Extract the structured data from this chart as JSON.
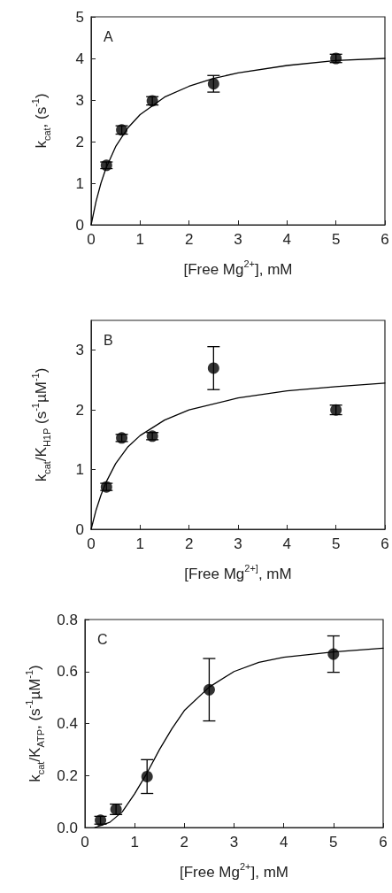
{
  "chart_data": [
    {
      "type": "scatter",
      "xlabel": "[Free Mg$^{2+}$], mM",
      "ylabel": "k$_{cat}$, (s$^{-1}$)",
      "annotations": [
        "A"
      ],
      "xlim": [
        0,
        6
      ],
      "xticks": [
        0,
        1,
        2,
        3,
        4,
        5,
        6
      ],
      "ylim": [
        0,
        5
      ],
      "yticks": [
        0,
        1,
        2,
        3,
        4,
        5
      ],
      "grid": false,
      "marker": "circle",
      "series": [
        {
          "color": "#000000",
          "x": [
            0.3125,
            0.625,
            1.25,
            2.5,
            5
          ],
          "values": [
            1.43,
            2.28,
            2.98,
            3.39,
            4.0
          ],
          "errors": [
            0.08,
            0.1,
            0.1,
            0.2,
            0.1
          ]
        },
        {
          "type": "line",
          "color": "#000000",
          "marker": "none",
          "line_style": "solid",
          "x": [
            0,
            0.1,
            0.2,
            0.3,
            0.5,
            0.75,
            1,
            1.5,
            2,
            2.5,
            3,
            4,
            5,
            6
          ],
          "values": [
            0,
            0.56,
            1.0,
            1.35,
            1.88,
            2.33,
            2.65,
            3.07,
            3.33,
            3.52,
            3.65,
            3.83,
            3.95,
            4.0
          ]
        }
      ]
    },
    {
      "type": "scatter",
      "xlabel": "[Free Mg$^{2+]}$, mM",
      "ylabel": "k$_{cat}$/K$_{H1P}$ (s$^{-1}$µM$^{-1}$)",
      "annotations": [
        "B"
      ],
      "xlim": [
        0,
        6
      ],
      "xticks": [
        0,
        1,
        2,
        3,
        4,
        5,
        6
      ],
      "ylim": [
        0,
        3.5
      ],
      "yticks": [
        0,
        1,
        2,
        3
      ],
      "grid": false,
      "marker": "circle",
      "series": [
        {
          "color": "#000000",
          "x": [
            0.3125,
            0.625,
            1.25,
            2.5,
            5
          ],
          "values": [
            0.71,
            1.53,
            1.56,
            2.7,
            2.0
          ],
          "errors": [
            0.06,
            0.06,
            0.06,
            0.36,
            0.08
          ]
        },
        {
          "type": "line",
          "color": "#000000",
          "marker": "none",
          "line_style": "solid",
          "x": [
            0,
            0.1,
            0.2,
            0.3,
            0.5,
            0.75,
            1,
            1.5,
            2,
            3,
            4,
            5,
            6
          ],
          "values": [
            0,
            0.32,
            0.57,
            0.78,
            1.1,
            1.38,
            1.57,
            1.83,
            2.0,
            2.2,
            2.32,
            2.39,
            2.45
          ]
        }
      ]
    },
    {
      "type": "scatter",
      "xlabel": "[Free Mg$^{2+}$], mM",
      "ylabel": "k$_{cat}$/K$_{ATP}$, (s$^{-1}$µM$^{-1}$)",
      "annotations": [
        "C"
      ],
      "xlim": [
        0,
        6
      ],
      "xticks": [
        0,
        1,
        2,
        3,
        4,
        5,
        6
      ],
      "ylim": [
        0,
        0.8
      ],
      "yticks": [
        {
          "value": 0,
          "label": "0.0"
        },
        {
          "value": 0.2,
          "label": "0.2"
        },
        {
          "value": 0.4,
          "label": "0.4"
        },
        {
          "value": 0.6,
          "label": "0.6"
        },
        {
          "value": 0.8,
          "label": "0.8"
        }
      ],
      "grid": false,
      "marker": "circle",
      "series": [
        {
          "color": "#000000",
          "x": [
            0.3125,
            0.625,
            1.25,
            2.5,
            5
          ],
          "values": [
            0.028,
            0.07,
            0.196,
            0.53,
            0.667
          ],
          "errors": [
            0.015,
            0.02,
            0.065,
            0.12,
            0.07
          ]
        },
        {
          "type": "line",
          "color": "#000000",
          "marker": "none",
          "line_style": "solid",
          "x": [
            0.2,
            0.5,
            0.75,
            1,
            1.25,
            1.5,
            1.75,
            2,
            2.5,
            3,
            3.5,
            4,
            5,
            6
          ],
          "values": [
            0,
            0.02,
            0.06,
            0.13,
            0.21,
            0.3,
            0.38,
            0.45,
            0.54,
            0.6,
            0.635,
            0.655,
            0.675,
            0.69
          ]
        }
      ]
    }
  ]
}
